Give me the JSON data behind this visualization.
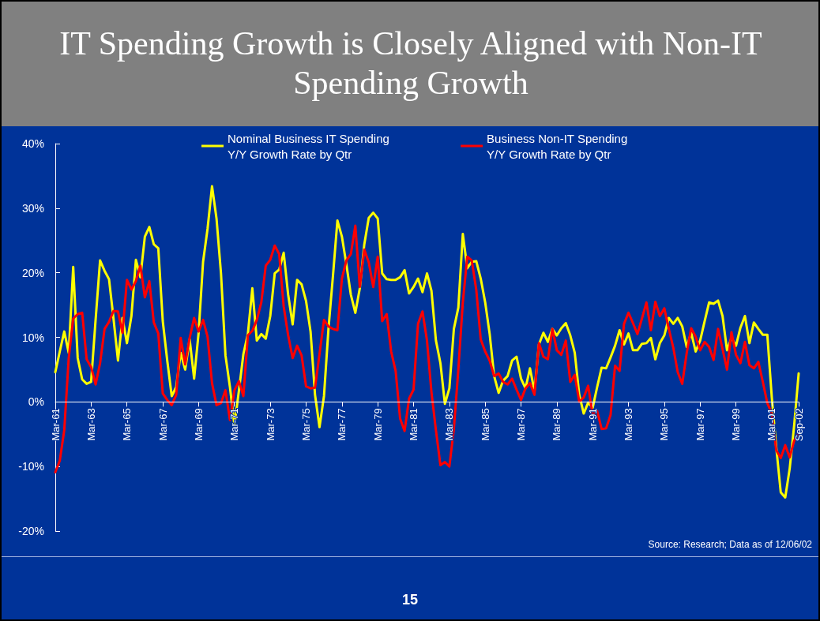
{
  "chart_data": {
    "type": "line",
    "title": "IT Spending Growth is Closely Aligned with Non-IT Spending Growth",
    "annotations": [
      "Source: Research; Data as of 12/06/02",
      "15"
    ],
    "categories": [
      "Mar-61",
      null,
      null,
      null,
      null,
      null,
      null,
      null,
      "Mar-63",
      null,
      null,
      null,
      null,
      null,
      null,
      null,
      "Mar-65",
      null,
      null,
      null,
      null,
      null,
      null,
      null,
      "Mar-67",
      null,
      null,
      null,
      null,
      null,
      null,
      null,
      "Mar-69",
      null,
      null,
      null,
      null,
      null,
      null,
      null,
      "Mar-71",
      null,
      null,
      null,
      null,
      null,
      null,
      null,
      "Mar-73",
      null,
      null,
      null,
      null,
      null,
      null,
      null,
      "Mar-75",
      null,
      null,
      null,
      null,
      null,
      null,
      null,
      "Mar-77",
      null,
      null,
      null,
      null,
      null,
      null,
      null,
      "Mar-79",
      null,
      null,
      null,
      null,
      null,
      null,
      null,
      "Mar-81",
      null,
      null,
      null,
      null,
      null,
      null,
      null,
      "Mar-83",
      null,
      null,
      null,
      null,
      null,
      null,
      null,
      "Mar-85",
      null,
      null,
      null,
      null,
      null,
      null,
      null,
      "Mar-87",
      null,
      null,
      null,
      null,
      null,
      null,
      null,
      "Mar-89",
      null,
      null,
      null,
      null,
      null,
      null,
      null,
      "Mar-91",
      null,
      null,
      null,
      null,
      null,
      null,
      null,
      "Mar-93",
      null,
      null,
      null,
      null,
      null,
      null,
      null,
      "Mar-95",
      null,
      null,
      null,
      null,
      null,
      null,
      null,
      "Mar-97",
      null,
      null,
      null,
      null,
      null,
      null,
      null,
      "Mar-99",
      null,
      null,
      null,
      null,
      null,
      null,
      null,
      "Mar-01",
      null,
      null,
      null,
      null,
      null,
      "Sep-02"
    ],
    "series": [
      {
        "name": "Nominal Business IT Spending\nY/Y Growth Rate by Qtr",
        "color": "#ffff00",
        "values": [
          4.6,
          7.8,
          10.9,
          7.6,
          20.9,
          6.8,
          3.5,
          2.8,
          3.1,
          12.7,
          21.9,
          20.3,
          19.0,
          12.9,
          6.4,
          13.0,
          9.1,
          13.3,
          22.0,
          19.3,
          25.6,
          27.1,
          24.4,
          23.8,
          12.5,
          6.4,
          0.9,
          2.3,
          7.6,
          5.0,
          9.7,
          3.6,
          10.7,
          21.7,
          26.8,
          33.4,
          28.4,
          19.9,
          7.2,
          2.3,
          -3.6,
          1.7,
          7.4,
          10.5,
          17.6,
          9.5,
          10.5,
          9.8,
          13.3,
          19.9,
          20.5,
          23.1,
          16.6,
          12.0,
          18.9,
          18.2,
          15.6,
          10.9,
          1.1,
          -3.9,
          0.9,
          11.3,
          19.5,
          28.1,
          25.6,
          21.3,
          16.6,
          13.8,
          17.6,
          24.4,
          28.5,
          29.3,
          28.4,
          19.9,
          19.0,
          18.9,
          18.9,
          19.3,
          20.4,
          16.8,
          17.8,
          19.1,
          17.0,
          19.9,
          17.2,
          9.5,
          6.0,
          -0.3,
          2.1,
          11.3,
          14.6,
          26.0,
          20.7,
          21.7,
          21.8,
          19.1,
          15.4,
          10.5,
          4.0,
          1.4,
          3.3,
          4.0,
          6.4,
          7.0,
          3.6,
          2.1,
          5.2,
          1.7,
          8.9,
          10.7,
          9.3,
          11.3,
          10.3,
          11.4,
          12.2,
          10.3,
          7.6,
          1.1,
          -1.8,
          -0.1,
          -0.9,
          2.3,
          5.3,
          5.2,
          6.9,
          8.7,
          11.1,
          8.9,
          10.6,
          8.0,
          8.0,
          9.0,
          9.1,
          9.9,
          6.6,
          9.1,
          10.3,
          13.0,
          12.1,
          13.0,
          11.7,
          8.5,
          10.7,
          7.8,
          9.5,
          12.5,
          15.4,
          15.2,
          15.7,
          13.3,
          8.0,
          9.9,
          8.7,
          11.5,
          13.3,
          9.1,
          12.3,
          11.3,
          10.4,
          10.4,
          0.7,
          -7.1,
          -14.0,
          -14.8,
          -10.3,
          -3.6,
          4.4
        ]
      },
      {
        "name": "Business Non-IT Spending\nY/Y Growth Rate by Qtr",
        "color": "#ff0000",
        "values": [
          -10.9,
          -9.1,
          -4.4,
          6.8,
          12.9,
          13.6,
          13.8,
          6.6,
          5.4,
          2.7,
          6.0,
          11.3,
          12.4,
          14.1,
          14.0,
          10.7,
          18.9,
          17.4,
          18.7,
          21.1,
          16.2,
          18.7,
          12.3,
          10.6,
          1.3,
          0.3,
          -0.5,
          1.1,
          9.9,
          5.8,
          9.9,
          13.0,
          10.9,
          12.7,
          10.1,
          2.9,
          -0.5,
          -0.2,
          1.8,
          -2.8,
          1.8,
          3.2,
          0.9,
          10.3,
          11.0,
          12.7,
          15.4,
          21.1,
          22.0,
          24.2,
          22.9,
          14.8,
          10.3,
          6.8,
          8.7,
          7.2,
          2.4,
          2.1,
          2.2,
          7.4,
          12.7,
          11.7,
          11.3,
          11.1,
          19.1,
          21.9,
          22.9,
          27.3,
          17.8,
          23.6,
          21.6,
          17.8,
          22.5,
          12.5,
          13.6,
          7.8,
          4.8,
          -2.6,
          -4.5,
          0.5,
          1.9,
          12.1,
          14.0,
          9.5,
          1.5,
          -4.4,
          -9.8,
          -9.3,
          -10.0,
          -4.2,
          5.0,
          15.4,
          22.5,
          21.9,
          17.4,
          9.7,
          7.8,
          6.4,
          4.0,
          4.4,
          3.1,
          2.7,
          3.6,
          1.9,
          0.3,
          2.1,
          2.9,
          1.1,
          9.1,
          7.0,
          6.6,
          11.3,
          8.0,
          7.3,
          9.5,
          3.1,
          4.2,
          0.0,
          0.7,
          2.5,
          -2.1,
          -1.4,
          -4.2,
          -4.1,
          -2.0,
          5.6,
          4.8,
          12.1,
          13.8,
          12.2,
          10.5,
          12.9,
          15.4,
          11.1,
          15.5,
          13.3,
          14.5,
          11.3,
          8.4,
          4.6,
          2.8,
          7.6,
          11.4,
          10.1,
          8.0,
          9.3,
          8.5,
          6.5,
          11.3,
          8.2,
          5.0,
          10.8,
          7.3,
          6.0,
          9.3,
          5.7,
          5.2,
          6.2,
          3.1,
          -0.2,
          -1.8,
          -7.5,
          -8.7,
          -6.7,
          -8.6,
          -6.0,
          -4.8
        ]
      }
    ],
    "ylim": [
      -20,
      40
    ],
    "yticks": [
      {
        "value": -20,
        "label": "-20%"
      },
      {
        "value": -10,
        "label": "-10%"
      },
      {
        "value": 0,
        "label": "0%"
      },
      {
        "value": 10,
        "label": "10%"
      },
      {
        "value": 20,
        "label": "20%"
      },
      {
        "value": 30,
        "label": "30%"
      },
      {
        "value": 40,
        "label": "40%"
      }
    ],
    "legend": "top",
    "line_style": "solid"
  }
}
